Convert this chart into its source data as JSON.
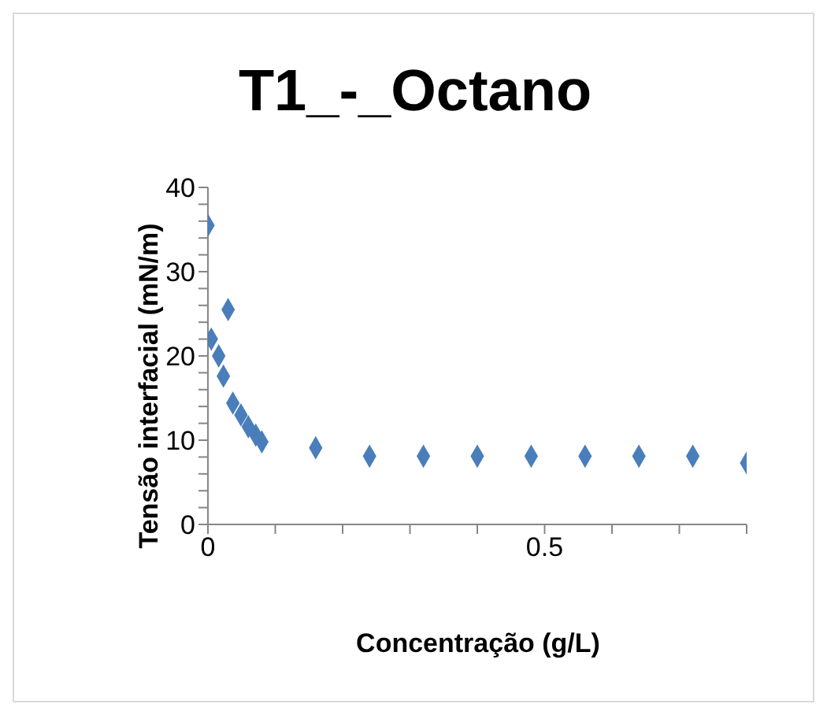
{
  "chart_data": {
    "type": "scatter",
    "title": "T1_-_Octano",
    "xlabel": "Concentração (g/L)",
    "ylabel": "Tensão interfacial (mN/m)",
    "x": [
      0,
      0.03,
      0.005,
      0.016,
      0.023,
      0.037,
      0.049,
      0.06,
      0.071,
      0.08,
      0.16,
      0.24,
      0.32,
      0.4,
      0.48,
      0.56,
      0.64,
      0.72,
      0.8
    ],
    "series": [
      {
        "color": "#4a7ebb",
        "values": [
          35.5,
          25.5,
          22,
          20,
          17.6,
          14.4,
          13,
          11.6,
          10.6,
          9.8,
          9.1,
          8.1,
          8.1,
          8.1,
          8.1,
          8.1,
          8.1,
          8.1,
          7.3
        ]
      }
    ],
    "xlim": [
      0,
      0.8
    ],
    "ylim": [
      0,
      40
    ],
    "xticks": [
      0,
      {
        "value": 0.1,
        "label": null
      },
      {
        "value": 0.2,
        "label": null
      },
      {
        "value": 0.3,
        "label": null
      },
      {
        "value": 0.4,
        "label": null
      },
      0.5,
      {
        "value": 0.6,
        "label": null
      },
      {
        "value": 0.7,
        "label": null
      },
      {
        "value": 0.8,
        "label": null
      }
    ],
    "yticks": [
      0,
      {
        "value": 2,
        "label": null
      },
      {
        "value": 4,
        "label": null
      },
      {
        "value": 6,
        "label": null
      },
      {
        "value": 8,
        "label": null
      },
      10,
      {
        "value": 12,
        "label": null
      },
      {
        "value": 14,
        "label": null
      },
      {
        "value": 16,
        "label": null
      },
      {
        "value": 18,
        "label": null
      },
      20,
      {
        "value": 22,
        "label": null
      },
      {
        "value": 24,
        "label": null
      },
      {
        "value": 26,
        "label": null
      },
      {
        "value": 28,
        "label": null
      },
      30,
      {
        "value": 32,
        "label": null
      },
      {
        "value": 34,
        "label": null
      },
      {
        "value": 36,
        "label": null
      },
      {
        "value": 38,
        "label": null
      },
      40
    ],
    "grid": false,
    "legend": false,
    "marker": "diamond"
  }
}
